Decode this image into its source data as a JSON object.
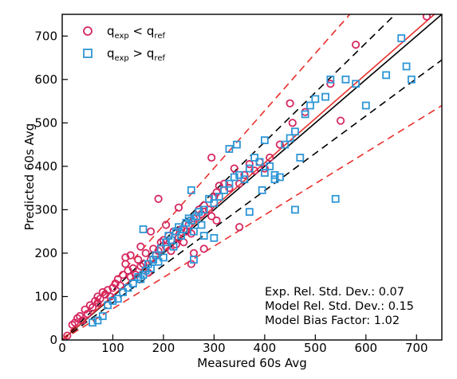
{
  "chart_data": {
    "type": "scatter",
    "xlabel": "Measured 60s Avg",
    "ylabel": "Predicted 60s Avg",
    "xlim": [
      0,
      750
    ],
    "ylim": [
      0,
      750
    ],
    "xticks": [
      0,
      100,
      200,
      300,
      400,
      500,
      600,
      700
    ],
    "yticks": [
      0,
      100,
      200,
      300,
      400,
      500,
      600,
      700
    ],
    "legend": {
      "position": "top-left",
      "entries": [
        {
          "base": "q",
          "sub1": "exp",
          "op": " < ",
          "sub2": "ref",
          "marker": "circle",
          "color": "#d6275f"
        },
        {
          "base": "q",
          "sub1": "exp",
          "op": " > ",
          "sub2": "ref",
          "marker": "square",
          "color": "#2e96d6"
        }
      ]
    },
    "annotations": [
      "Exp. Rel. Std. Dev.: 0.07",
      "Model Rel. Std. Dev.: 0.15",
      "Model Bias Factor: 1.02"
    ],
    "stats": {
      "exp_rel_std_dev": 0.07,
      "model_rel_std_dev": 0.15,
      "model_bias_factor": 1.02
    },
    "lines": [
      {
        "kind": "identity",
        "slope": 1.0,
        "style": "solid",
        "color": "#000000"
      },
      {
        "kind": "bias",
        "slope": 1.02,
        "style": "solid",
        "color": "#e8302c"
      },
      {
        "kind": "exp-band-upper",
        "slope": 1.14,
        "style": "dashed",
        "color": "#000000"
      },
      {
        "kind": "exp-band-lower",
        "slope": 0.86,
        "style": "dashed",
        "color": "#000000"
      },
      {
        "kind": "model-band-upper",
        "slope": 1.32,
        "style": "dashed",
        "color": "#e8302c"
      },
      {
        "kind": "model-band-lower",
        "slope": 0.72,
        "style": "dashed",
        "color": "#e8302c"
      }
    ],
    "series": [
      {
        "name": "q_exp < q_ref",
        "marker": "circle",
        "color": "#d6275f",
        "points": [
          [
            10,
            10
          ],
          [
            20,
            35
          ],
          [
            25,
            40
          ],
          [
            30,
            50
          ],
          [
            35,
            55
          ],
          [
            40,
            45
          ],
          [
            45,
            70
          ],
          [
            50,
            60
          ],
          [
            55,
            80
          ],
          [
            60,
            75
          ],
          [
            65,
            90
          ],
          [
            70,
            85
          ],
          [
            70,
            100
          ],
          [
            75,
            95
          ],
          [
            80,
            110
          ],
          [
            85,
            105
          ],
          [
            90,
            115
          ],
          [
            95,
            100
          ],
          [
            100,
            120
          ],
          [
            105,
            130
          ],
          [
            110,
            140
          ],
          [
            115,
            125
          ],
          [
            120,
            150
          ],
          [
            125,
            175
          ],
          [
            125,
            190
          ],
          [
            130,
            160
          ],
          [
            135,
            145
          ],
          [
            140,
            165
          ],
          [
            145,
            150
          ],
          [
            150,
            185
          ],
          [
            155,
            170
          ],
          [
            160,
            175
          ],
          [
            165,
            200
          ],
          [
            170,
            155
          ],
          [
            175,
            185
          ],
          [
            180,
            210
          ],
          [
            185,
            195
          ],
          [
            190,
            205
          ],
          [
            195,
            225
          ],
          [
            200,
            230
          ],
          [
            205,
            215
          ],
          [
            210,
            240
          ],
          [
            215,
            205
          ],
          [
            220,
            250
          ],
          [
            225,
            220
          ],
          [
            230,
            235
          ],
          [
            235,
            255
          ],
          [
            240,
            225
          ],
          [
            245,
            250
          ],
          [
            250,
            265
          ],
          [
            255,
            245
          ],
          [
            260,
            280
          ],
          [
            270,
            300
          ],
          [
            275,
            290
          ],
          [
            280,
            310
          ],
          [
            290,
            300
          ],
          [
            295,
            285
          ],
          [
            300,
            330
          ],
          [
            305,
            340
          ],
          [
            310,
            355
          ],
          [
            320,
            360
          ],
          [
            330,
            350
          ],
          [
            340,
            395
          ],
          [
            350,
            360
          ],
          [
            360,
            380
          ],
          [
            370,
            405
          ],
          [
            380,
            390
          ],
          [
            390,
            410
          ],
          [
            400,
            395
          ],
          [
            410,
            420
          ],
          [
            430,
            450
          ],
          [
            450,
            545
          ],
          [
            455,
            500
          ],
          [
            480,
            525
          ],
          [
            530,
            590
          ],
          [
            550,
            505
          ],
          [
            580,
            680
          ],
          [
            720,
            745
          ],
          [
            190,
            325
          ],
          [
            295,
            420
          ],
          [
            255,
            175
          ],
          [
            280,
            210
          ],
          [
            350,
            260
          ],
          [
            135,
            195
          ],
          [
            155,
            215
          ],
          [
            175,
            250
          ],
          [
            205,
            265
          ],
          [
            230,
            305
          ],
          [
            260,
            200
          ],
          [
            305,
            275
          ]
        ]
      },
      {
        "name": "q_exp > q_ref",
        "marker": "square",
        "color": "#2e96d6",
        "points": [
          [
            60,
            40
          ],
          [
            70,
            45
          ],
          [
            80,
            55
          ],
          [
            90,
            80
          ],
          [
            100,
            90
          ],
          [
            110,
            95
          ],
          [
            120,
            110
          ],
          [
            130,
            120
          ],
          [
            140,
            130
          ],
          [
            150,
            145
          ],
          [
            155,
            140
          ],
          [
            160,
            150
          ],
          [
            165,
            160
          ],
          [
            170,
            175
          ],
          [
            175,
            165
          ],
          [
            180,
            185
          ],
          [
            185,
            195
          ],
          [
            190,
            180
          ],
          [
            195,
            210
          ],
          [
            200,
            190
          ],
          [
            205,
            225
          ],
          [
            210,
            240
          ],
          [
            215,
            230
          ],
          [
            220,
            215
          ],
          [
            225,
            250
          ],
          [
            230,
            260
          ],
          [
            235,
            240
          ],
          [
            240,
            255
          ],
          [
            245,
            270
          ],
          [
            250,
            280
          ],
          [
            255,
            275
          ],
          [
            260,
            250
          ],
          [
            265,
            285
          ],
          [
            270,
            295
          ],
          [
            275,
            265
          ],
          [
            280,
            300
          ],
          [
            290,
            325
          ],
          [
            300,
            315
          ],
          [
            310,
            330
          ],
          [
            320,
            345
          ],
          [
            330,
            360
          ],
          [
            340,
            375
          ],
          [
            350,
            380
          ],
          [
            360,
            370
          ],
          [
            370,
            395
          ],
          [
            380,
            420
          ],
          [
            390,
            410
          ],
          [
            400,
            385
          ],
          [
            410,
            400
          ],
          [
            420,
            380
          ],
          [
            430,
            375
          ],
          [
            440,
            450
          ],
          [
            450,
            465
          ],
          [
            460,
            480
          ],
          [
            470,
            420
          ],
          [
            480,
            520
          ],
          [
            490,
            540
          ],
          [
            500,
            555
          ],
          [
            520,
            560
          ],
          [
            530,
            600
          ],
          [
            540,
            325
          ],
          [
            560,
            600
          ],
          [
            580,
            590
          ],
          [
            600,
            540
          ],
          [
            640,
            610
          ],
          [
            670,
            695
          ],
          [
            680,
            630
          ],
          [
            690,
            600
          ],
          [
            330,
            440
          ],
          [
            345,
            450
          ],
          [
            370,
            295
          ],
          [
            280,
            240
          ],
          [
            255,
            345
          ],
          [
            160,
            255
          ],
          [
            260,
            185
          ],
          [
            400,
            460
          ],
          [
            460,
            300
          ],
          [
            395,
            345
          ],
          [
            420,
            370
          ],
          [
            300,
            235
          ]
        ]
      }
    ]
  }
}
